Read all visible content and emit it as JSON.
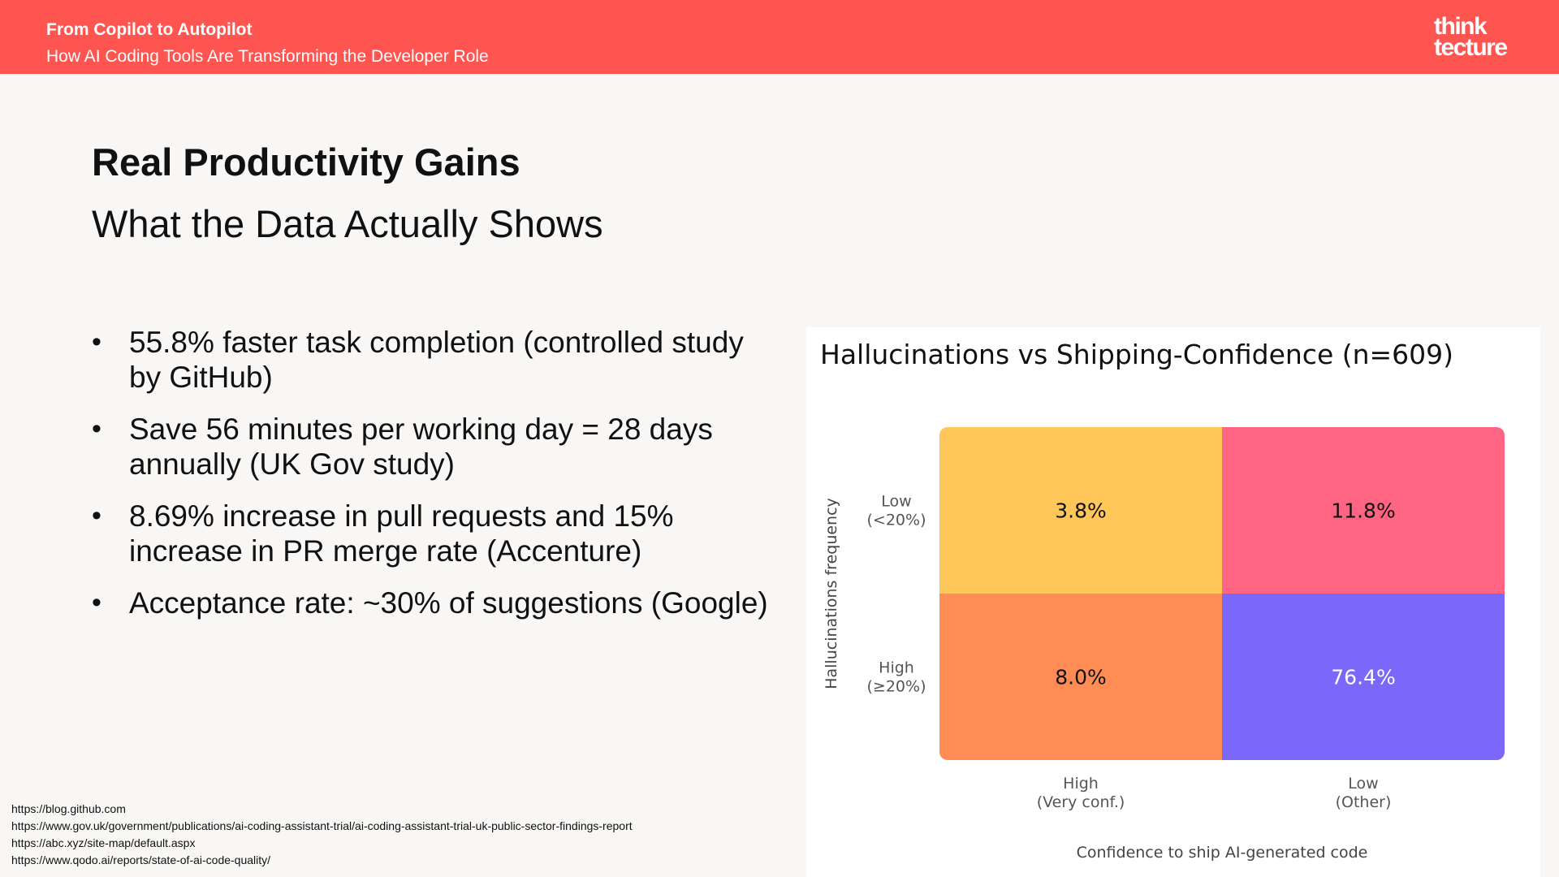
{
  "header": {
    "title": "From Copilot to Autopilot",
    "subtitle": "How AI Coding Tools Are Transforming the Developer Role",
    "logo_line1": "think",
    "logo_line2": "tecture"
  },
  "slide": {
    "title": "Real Productivity Gains",
    "subtitle": "What the Data Actually Shows",
    "bullets": [
      "55.8% faster task completion (controlled study by GitHub)",
      "Save 56 minutes per working day = 28 days annually (UK Gov study)",
      "8.69% increase in pull requests and 15% increase in PR merge rate (Accenture)",
      "Acceptance rate: ~30% of suggestions (Google)"
    ],
    "sources": [
      "https://blog.github.com",
      "https://www.gov.uk/government/publications/ai-coding-assistant-trial/ai-coding-assistant-trial-uk-public-sector-findings-report",
      "https://abc.xyz/site-map/default.aspx",
      "https://www.qodo.ai/reports/state-of-ai-code-quality/"
    ]
  },
  "chart_data": {
    "type": "heatmap",
    "title": "Hallucinations vs Shipping-Confidence (n=609)",
    "xlabel": "Confidence to ship AI-generated code",
    "ylabel": "Hallucinations frequency",
    "x_categories": [
      [
        "High",
        "(Very conf.)"
      ],
      [
        "Low",
        "(Other)"
      ]
    ],
    "y_categories": [
      [
        "Low",
        "(<20%)"
      ],
      [
        "High",
        "(≥20%)"
      ]
    ],
    "values": [
      [
        3.8,
        11.8
      ],
      [
        8.0,
        76.4
      ]
    ],
    "labels": [
      [
        "3.8%",
        "11.8%"
      ],
      [
        "8.0%",
        "76.4%"
      ]
    ],
    "colors": [
      [
        "#ffc65a",
        "#ff6482"
      ],
      [
        "#ff8c55",
        "#7b68fb"
      ]
    ],
    "label_colors": [
      [
        "#111111",
        "#111111"
      ],
      [
        "#111111",
        "#ffffff"
      ]
    ]
  }
}
